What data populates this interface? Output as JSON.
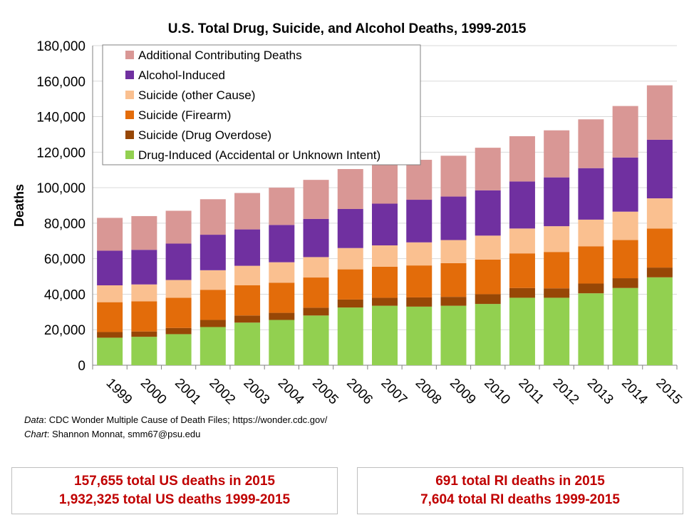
{
  "chart_data": {
    "type": "bar",
    "stacked": true,
    "title": "U.S. Total Drug, Suicide, and Alcohol Deaths, 1999-2015",
    "xlabel": "",
    "ylabel": "Deaths",
    "ylim": [
      0,
      180000
    ],
    "yticks": [
      0,
      20000,
      40000,
      60000,
      80000,
      100000,
      120000,
      140000,
      160000,
      180000
    ],
    "ytick_labels": [
      "0",
      "20,000",
      "40,000",
      "60,000",
      "80,000",
      "100,000",
      "120,000",
      "140,000",
      "160,000",
      "180,000"
    ],
    "grid": true,
    "legend_position": "top-left",
    "categories": [
      "1999",
      "2000",
      "2001",
      "2002",
      "2003",
      "2004",
      "2005",
      "2006",
      "2007",
      "2008",
      "2009",
      "2010",
      "2011",
      "2012",
      "2013",
      "2014",
      "2015"
    ],
    "series": [
      {
        "name": "Drug-Induced (Accidental or Unknown Intent)",
        "color": "#92d050",
        "values": [
          15500,
          16000,
          17500,
          21500,
          24000,
          25500,
          28000,
          32500,
          33500,
          33000,
          33500,
          34500,
          38000,
          38000,
          40500,
          43500,
          49500
        ]
      },
      {
        "name": "Suicide (Drug Overdose)",
        "color": "#974706",
        "values": [
          3200,
          3000,
          3500,
          4000,
          4000,
          4000,
          4400,
          4500,
          4500,
          5200,
          5000,
          5500,
          5500,
          5300,
          5500,
          5500,
          5500
        ]
      },
      {
        "name": "Suicide (Firearm)",
        "color": "#e36c0a",
        "values": [
          16800,
          17000,
          17000,
          17000,
          17000,
          17000,
          17000,
          17000,
          17500,
          18000,
          19000,
          19500,
          19500,
          20500,
          21000,
          21500,
          22000
        ]
      },
      {
        "name": "Suicide (other Cause)",
        "color": "#fac090",
        "values": [
          9500,
          9500,
          10000,
          11000,
          11000,
          11500,
          11500,
          12000,
          12000,
          13000,
          13000,
          13500,
          14000,
          14500,
          15000,
          16000,
          17000
        ]
      },
      {
        "name": "Alcohol-Induced",
        "color": "#7030a0",
        "values": [
          19500,
          19500,
          20500,
          20000,
          20500,
          21000,
          21500,
          22000,
          23500,
          24000,
          24500,
          25500,
          26500,
          27500,
          29000,
          30500,
          33000
        ]
      },
      {
        "name": "Additional Contributing Deaths",
        "color": "#d99795",
        "values": [
          18500,
          19000,
          18500,
          20000,
          20500,
          21000,
          22000,
          22500,
          22500,
          22500,
          23000,
          24000,
          25500,
          26500,
          27500,
          29000,
          30655
        ]
      }
    ],
    "annotations": [
      "Data: CDC Wonder Multiple Cause of Death Files; https://wonder.cdc.gov/",
      "Chart: Shannon Monnat, smm67@psu.edu"
    ]
  },
  "source": {
    "data_label": "Data",
    "data_text": ": CDC Wonder Multiple Cause of Death Files; https://wonder.cdc.gov/",
    "chart_label": "Chart",
    "chart_text": ": Shannon Monnat, smm67@psu.edu"
  },
  "summary_us": {
    "line1": "157,655 total US deaths in 2015",
    "line2": "1,932,325 total US deaths 1999-2015"
  },
  "summary_ri": {
    "line1": "691 total RI deaths in 2015",
    "line2": "7,604 total RI deaths 1999-2015"
  }
}
